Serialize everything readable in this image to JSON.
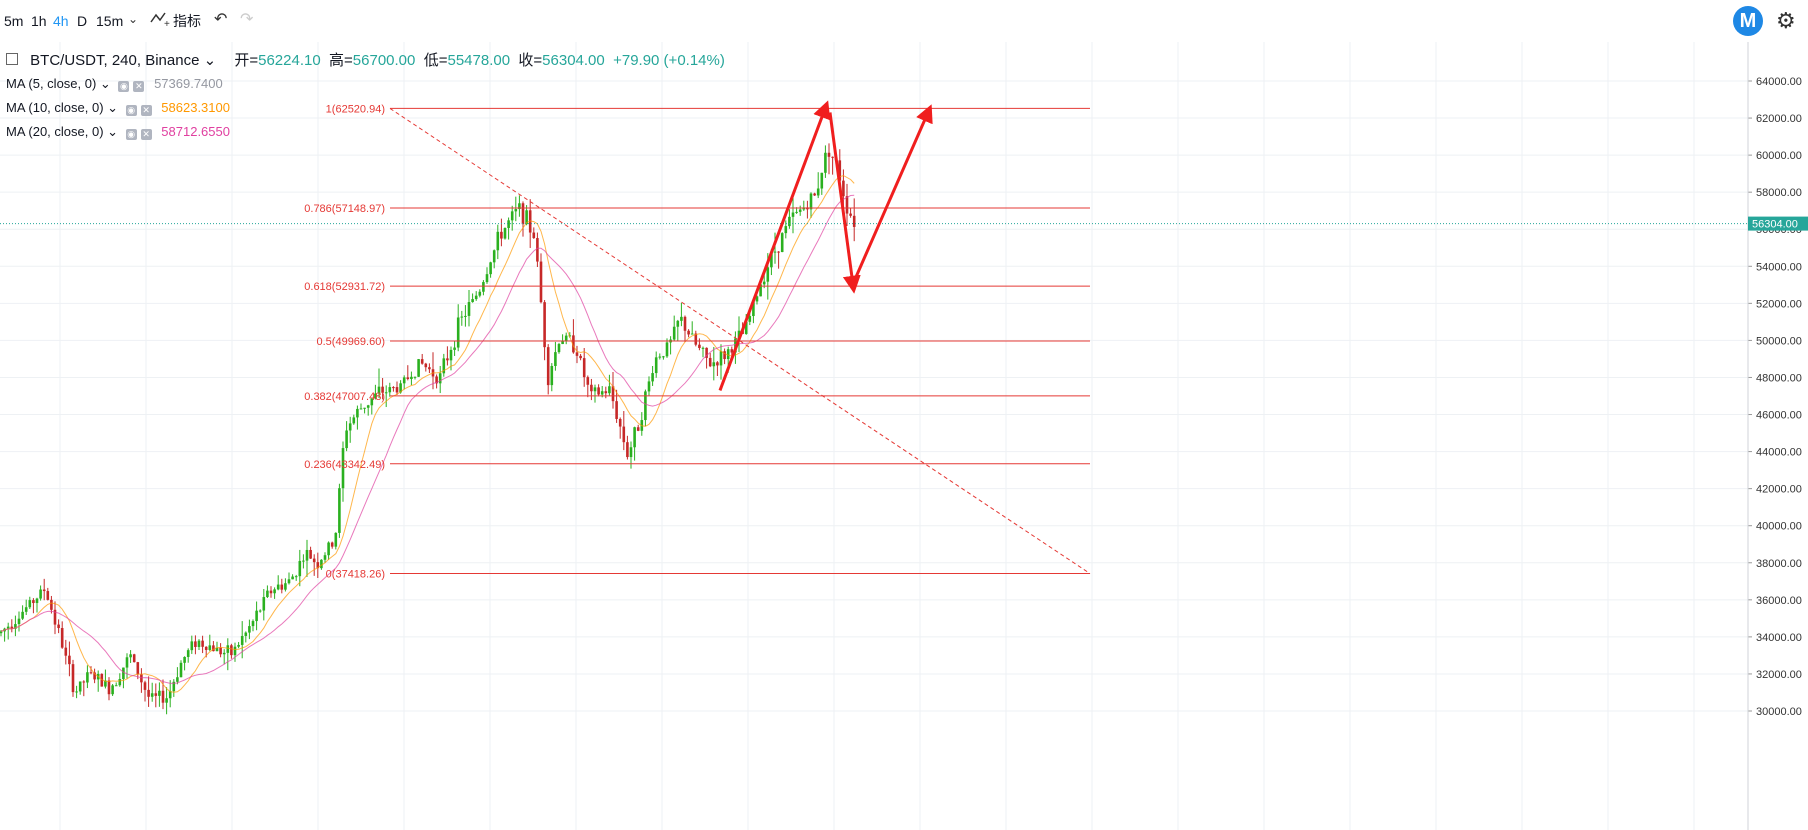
{
  "toolbar": {
    "intervals": [
      "5m",
      "1h",
      "4h",
      "D",
      "15m"
    ],
    "active_interval": "4h",
    "dropdown_icon": "chevron-down-icon",
    "indicators_icon": "indicators-icon",
    "indicators_label": "指标",
    "undo_icon": "undo-icon",
    "redo_icon": "redo-icon",
    "logo_icon": "m-logo-icon",
    "logo_letter": "M",
    "settings_icon": "gear-icon"
  },
  "header": {
    "symbol": "BTC/USDT, 240, Binance",
    "open_label": "开=",
    "open": "56224.10",
    "high_label": "高=",
    "high": "56700.00",
    "low_label": "低=",
    "low": "55478.00",
    "close_label": "收=",
    "close": "56304.00",
    "change": "+79.90 (+0.14%)"
  },
  "indicators": [
    {
      "label": "MA (5, close, 0)",
      "value": "57369.7400",
      "color": "#9598a1"
    },
    {
      "label": "MA (10, close, 0)",
      "value": "58623.3100",
      "color": "#ff9800"
    },
    {
      "label": "MA (20, close, 0)",
      "value": "58712.6550",
      "color": "#e040a0"
    }
  ],
  "colors": {
    "up": "#26a69a",
    "up_candle": "#2ab01f",
    "down": "#c62828",
    "fib": "#e53935",
    "arrow": "#f01e1e",
    "price_tag": "#26a69a"
  },
  "chart_data": {
    "type": "candlestick",
    "title": "BTC/USDT, 240, Binance",
    "ylim": [
      29000,
      65000
    ],
    "y_ticks": [
      30000,
      32000,
      34000,
      36000,
      38000,
      40000,
      42000,
      44000,
      46000,
      48000,
      50000,
      52000,
      54000,
      56000,
      58000,
      60000,
      62000,
      64000
    ],
    "y_tick_labels": [
      "30000.00",
      "32000.00",
      "34000.00",
      "36000.00",
      "38000.00",
      "40000.00",
      "42000.00",
      "44000.00",
      "46000.00",
      "48000.00",
      "50000.00",
      "52000.00",
      "54000.00",
      "56000.00",
      "58000.00",
      "60000.00",
      "62000.00",
      "64000.00"
    ],
    "last_price": 56304.0,
    "last_price_label": "56304.00",
    "grid": true,
    "fib_levels": [
      {
        "ratio": "1",
        "price": 62520.94,
        "label": "1(62520.94)"
      },
      {
        "ratio": "0.786",
        "price": 57148.97,
        "label": "0.786(57148.97)"
      },
      {
        "ratio": "0.618",
        "price": 52931.72,
        "label": "0.618(52931.72)"
      },
      {
        "ratio": "0.5",
        "price": 49969.6,
        "label": "0.5(49969.60)"
      },
      {
        "ratio": "0.382",
        "price": 47007.48,
        "label": "0.382(47007.48)"
      },
      {
        "ratio": "0.236",
        "price": 43342.49,
        "label": "0.236(43342.49)"
      },
      {
        "ratio": "0",
        "price": 37418.26,
        "label": "0(37418.26)"
      }
    ],
    "series": [
      {
        "name": "BTC/USDT",
        "type": "candlestick",
        "close_path": [
          [
            0,
            34200
          ],
          [
            25,
            35500
          ],
          [
            45,
            36600
          ],
          [
            60,
            34000
          ],
          [
            75,
            31000
          ],
          [
            90,
            32000
          ],
          [
            110,
            31200
          ],
          [
            130,
            33000
          ],
          [
            150,
            30600
          ],
          [
            168,
            30800
          ],
          [
            180,
            32500
          ],
          [
            195,
            33800
          ],
          [
            210,
            33500
          ],
          [
            230,
            33000
          ],
          [
            250,
            34500
          ],
          [
            270,
            36500
          ],
          [
            290,
            37000
          ],
          [
            305,
            38500
          ],
          [
            318,
            38000
          ],
          [
            335,
            39200
          ],
          [
            345,
            45200
          ],
          [
            360,
            46300
          ],
          [
            380,
            47200
          ],
          [
            400,
            47500
          ],
          [
            420,
            48800
          ],
          [
            440,
            48000
          ],
          [
            460,
            51000
          ],
          [
            480,
            52800
          ],
          [
            500,
            55700
          ],
          [
            520,
            57200
          ],
          [
            535,
            55500
          ],
          [
            548,
            48000
          ],
          [
            560,
            50200
          ],
          [
            575,
            49800
          ],
          [
            590,
            47000
          ],
          [
            610,
            47300
          ],
          [
            628,
            43800
          ],
          [
            640,
            45800
          ],
          [
            655,
            49000
          ],
          [
            670,
            49800
          ],
          [
            680,
            51200
          ],
          [
            695,
            49800
          ],
          [
            710,
            48700
          ],
          [
            725,
            49200
          ],
          [
            745,
            50500
          ],
          [
            765,
            53800
          ],
          [
            790,
            56500
          ],
          [
            815,
            57800
          ],
          [
            828,
            60500
          ],
          [
            838,
            59200
          ],
          [
            848,
            57000
          ],
          [
            856,
            56304
          ]
        ],
        "open": 56224.1,
        "high": 56700.0,
        "low": 55478.0,
        "close": 56304.0
      },
      {
        "name": "MA (5, close, 0)",
        "type": "line",
        "last": 57369.74
      },
      {
        "name": "MA (10, close, 0)",
        "type": "line",
        "last": 58623.31
      },
      {
        "name": "MA (20, close, 0)",
        "type": "line",
        "last": 58712.655
      }
    ]
  }
}
